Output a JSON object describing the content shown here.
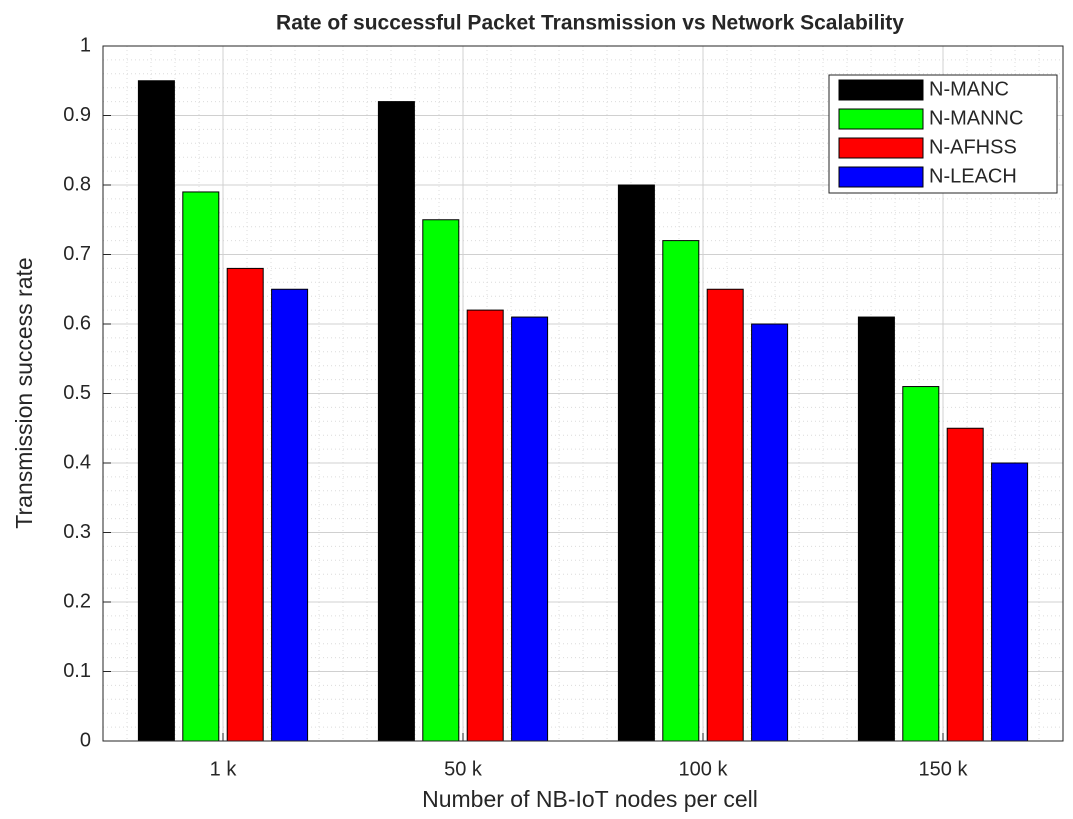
{
  "chart_data": {
    "type": "bar",
    "title": "Rate of successful Packet Transmission vs Network Scalability",
    "xlabel": "Number of NB-IoT nodes per cell",
    "ylabel": "Transmission success rate",
    "categories": [
      "1 k",
      "50 k",
      "100 k",
      "150 k"
    ],
    "series": [
      {
        "name": "N-MANC",
        "color": "#000000",
        "values": [
          0.95,
          0.92,
          0.8,
          0.61
        ]
      },
      {
        "name": "N-MANNC",
        "color": "#00ff00",
        "values": [
          0.79,
          0.75,
          0.72,
          0.51
        ]
      },
      {
        "name": "N-AFHSS",
        "color": "#ff0000",
        "values": [
          0.68,
          0.62,
          0.65,
          0.45
        ]
      },
      {
        "name": "N-LEACH",
        "color": "#0000ff",
        "values": [
          0.65,
          0.61,
          0.6,
          0.4
        ]
      }
    ],
    "ylim": [
      0,
      1
    ],
    "yticks": [
      0,
      0.1,
      0.2,
      0.3,
      0.4,
      0.5,
      0.6,
      0.7,
      0.8,
      0.9,
      1
    ],
    "grid": true,
    "minor_grid": true,
    "legend": "upper right"
  }
}
